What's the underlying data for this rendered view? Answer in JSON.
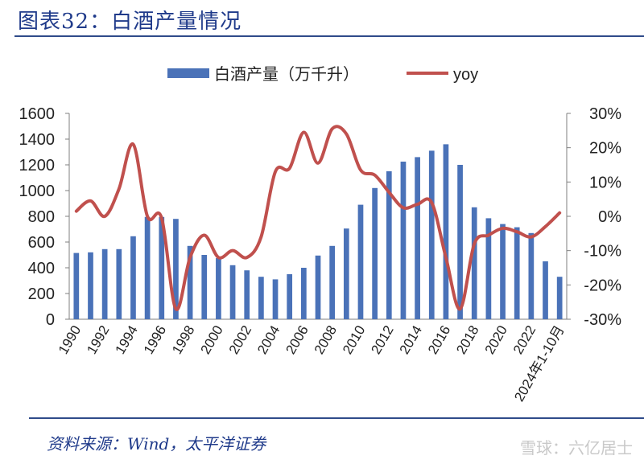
{
  "title": "图表32：白酒产量情况",
  "source": "资料来源：Wind，太平洋证券",
  "watermark": "雪球：六亿居士",
  "chart_data": {
    "type": "bar+line",
    "categories": [
      "1990",
      "1991",
      "1992",
      "1993",
      "1994",
      "1995",
      "1996",
      "1997",
      "1998",
      "1999",
      "2000",
      "2001",
      "2002",
      "2003",
      "2004",
      "2005",
      "2006",
      "2007",
      "2008",
      "2009",
      "2010",
      "2011",
      "2012",
      "2013",
      "2014",
      "2015",
      "2016",
      "2017",
      "2018",
      "2019",
      "2020",
      "2021",
      "2022",
      "2023",
      "2024年1-10月"
    ],
    "x_tick_labels": [
      "1990",
      "1992",
      "1994",
      "1996",
      "1998",
      "2000",
      "2002",
      "2004",
      "2006",
      "2008",
      "2010",
      "2012",
      "2014",
      "2016",
      "2018",
      "2020",
      "2022",
      "2024年1-10月"
    ],
    "series": [
      {
        "name": "白酒产量（万千升）",
        "type": "bar",
        "axis": "left",
        "color": "#4a72b8",
        "values": [
          515,
          520,
          545,
          545,
          645,
          795,
          795,
          780,
          570,
          500,
          475,
          420,
          380,
          330,
          310,
          350,
          400,
          495,
          570,
          705,
          890,
          1020,
          1150,
          1225,
          1260,
          1310,
          1360,
          1200,
          870,
          785,
          740,
          715,
          670,
          450,
          330
        ]
      },
      {
        "name": "yoy",
        "type": "line",
        "axis": "right",
        "color": "#c0504d",
        "values": [
          0.015,
          0.045,
          0.0,
          0.08,
          0.21,
          0.0,
          -0.005,
          -0.27,
          -0.12,
          -0.055,
          -0.12,
          -0.1,
          -0.12,
          -0.06,
          0.13,
          0.14,
          0.245,
          0.155,
          0.255,
          0.24,
          0.135,
          0.12,
          0.07,
          0.025,
          0.035,
          0.04,
          -0.12,
          -0.27,
          -0.08,
          -0.055,
          -0.035,
          -0.045,
          -0.06,
          -0.03,
          0.01
        ]
      }
    ],
    "y_left": {
      "min": 0,
      "max": 1600,
      "ticks": [
        "0",
        "200",
        "400",
        "600",
        "800",
        "1000",
        "1200",
        "1400",
        "1600"
      ]
    },
    "y_right": {
      "min": -0.3,
      "max": 0.3,
      "ticks": [
        "-30%",
        "-20%",
        "-10%",
        "0%",
        "10%",
        "20%",
        "30%"
      ]
    },
    "legend": {
      "placement": "top",
      "items": [
        "白酒产量（万千升）",
        "yoy"
      ]
    },
    "grid": false
  }
}
